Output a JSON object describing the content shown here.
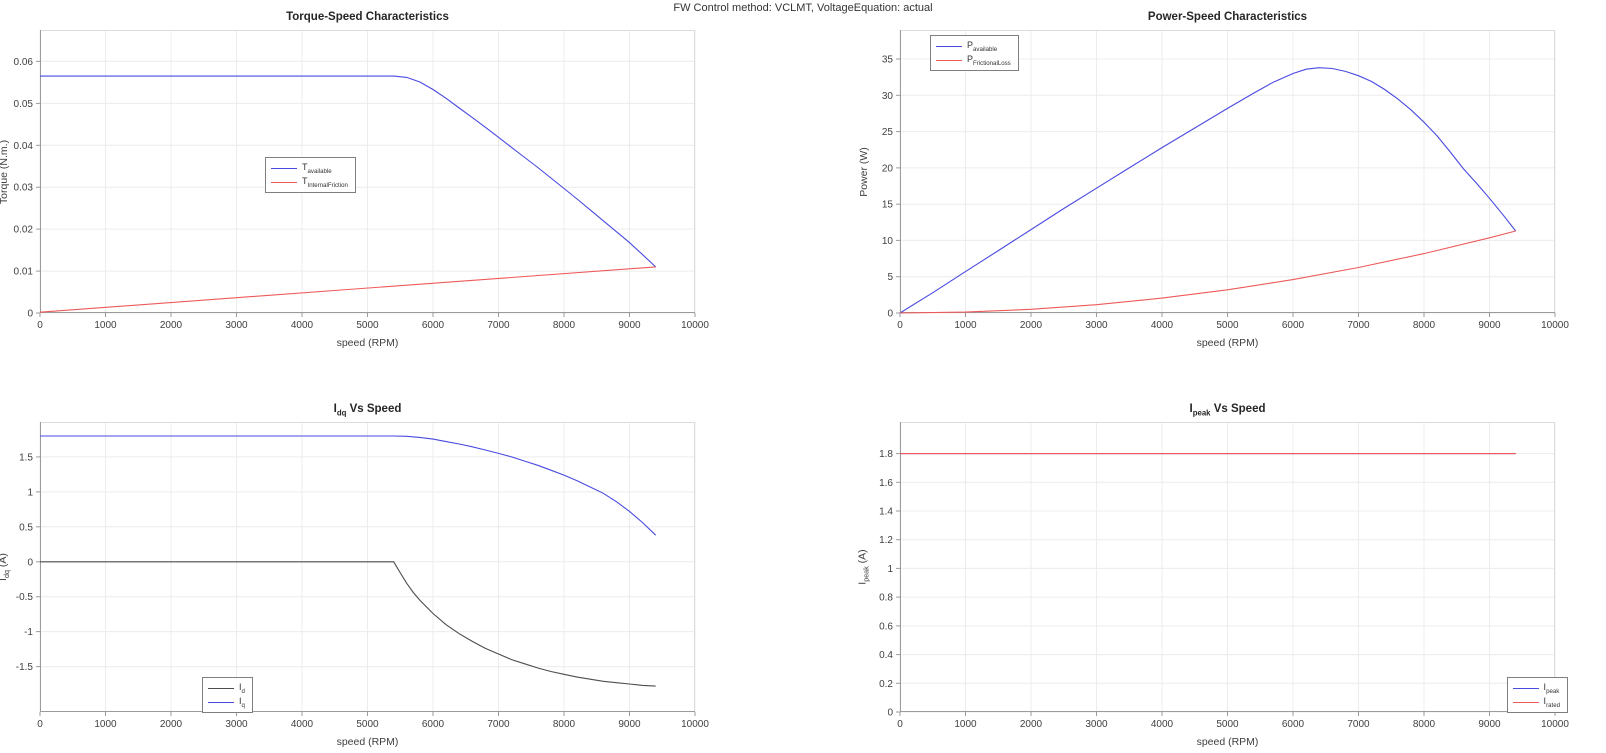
{
  "figure_title": "FW Control method: VCLMT, VoltageEquation: actual",
  "colors": {
    "line_blue": "#4a4ae0",
    "line_red": "#ee5a5a",
    "line_dark": "#4d4d4d",
    "grid": "#ececec",
    "axis": "#9b9b9b",
    "box_light": "#dcdcdc",
    "tick_text": "#404040",
    "title_text": "#262626",
    "legend_border": "#7f7f7f"
  },
  "chart_data": [
    {
      "id": "torque-speed",
      "type": "line",
      "title": "Torque-Speed Characteristics",
      "xlabel": "speed (RPM)",
      "ylabel": "Torque (N.m.)",
      "xlim": [
        0,
        10000
      ],
      "ylim": [
        0,
        0.0675
      ],
      "xticks": [
        0,
        1000,
        2000,
        3000,
        4000,
        5000,
        6000,
        7000,
        8000,
        9000,
        10000
      ],
      "yticks": [
        0,
        0.01,
        0.02,
        0.03,
        0.04,
        0.05,
        0.06
      ],
      "grid": true,
      "legend_position": "center-left",
      "series": [
        {
          "name": "T_{available}",
          "color": "#4a4ae0",
          "points": [
            [
              0,
              0.0565
            ],
            [
              5400,
              0.0565
            ],
            [
              5600,
              0.0562
            ],
            [
              5800,
              0.0551
            ],
            [
              6000,
              0.0533
            ],
            [
              6200,
              0.0512
            ],
            [
              6400,
              0.0489
            ],
            [
              6600,
              0.0466
            ],
            [
              6800,
              0.0443
            ],
            [
              7000,
              0.0419
            ],
            [
              7200,
              0.0395
            ],
            [
              7400,
              0.0371
            ],
            [
              7600,
              0.0347
            ],
            [
              7800,
              0.0322
            ],
            [
              8000,
              0.0297
            ],
            [
              8200,
              0.0272
            ],
            [
              8400,
              0.0246
            ],
            [
              8600,
              0.022
            ],
            [
              8800,
              0.0194
            ],
            [
              9000,
              0.0168
            ],
            [
              9200,
              0.0139
            ],
            [
              9400,
              0.011
            ]
          ]
        },
        {
          "name": "T_{InternalFriction}",
          "color": "#ee5a5a",
          "points": [
            [
              0,
              0.0002
            ],
            [
              4700,
              0.0056
            ],
            [
              9400,
              0.011
            ]
          ]
        }
      ]
    },
    {
      "id": "power-speed",
      "type": "line",
      "title": "Power-Speed Characteristics",
      "xlabel": "speed (RPM)",
      "ylabel": "Power (W)",
      "xlim": [
        0,
        10000
      ],
      "ylim": [
        0,
        39
      ],
      "xticks": [
        0,
        1000,
        2000,
        3000,
        4000,
        5000,
        6000,
        7000,
        8000,
        9000,
        10000
      ],
      "yticks": [
        0,
        5,
        10,
        15,
        20,
        25,
        30,
        35
      ],
      "grid": true,
      "legend_position": "top-left",
      "series": [
        {
          "name": "P_{available}",
          "color": "#4a4ae0",
          "points": [
            [
              0,
              0
            ],
            [
              500,
              2.8
            ],
            [
              1000,
              5.7
            ],
            [
              1500,
              8.6
            ],
            [
              2000,
              11.5
            ],
            [
              2500,
              14.4
            ],
            [
              3000,
              17.2
            ],
            [
              3500,
              20.0
            ],
            [
              4000,
              22.8
            ],
            [
              4500,
              25.5
            ],
            [
              5000,
              28.2
            ],
            [
              5400,
              30.3
            ],
            [
              5700,
              31.8
            ],
            [
              6000,
              33.0
            ],
            [
              6200,
              33.6
            ],
            [
              6400,
              33.8
            ],
            [
              6600,
              33.7
            ],
            [
              6800,
              33.3
            ],
            [
              7000,
              32.7
            ],
            [
              7200,
              31.9
            ],
            [
              7400,
              30.8
            ],
            [
              7600,
              29.5
            ],
            [
              7800,
              28.0
            ],
            [
              8000,
              26.3
            ],
            [
              8200,
              24.4
            ],
            [
              8400,
              22.2
            ],
            [
              8600,
              19.9
            ],
            [
              8800,
              17.9
            ],
            [
              9000,
              15.8
            ],
            [
              9200,
              13.6
            ],
            [
              9400,
              11.3
            ]
          ]
        },
        {
          "name": "P_{FrictionalLoss}",
          "color": "#ee5a5a",
          "points": [
            [
              0,
              0
            ],
            [
              1000,
              0.13
            ],
            [
              2000,
              0.51
            ],
            [
              3000,
              1.15
            ],
            [
              4000,
              2.05
            ],
            [
              5000,
              3.2
            ],
            [
              6000,
              4.6
            ],
            [
              7000,
              6.27
            ],
            [
              8000,
              8.18
            ],
            [
              9000,
              10.36
            ],
            [
              9400,
              11.3
            ]
          ]
        }
      ]
    },
    {
      "id": "idq-speed",
      "type": "line",
      "title": "I_{dq}  Vs  Speed",
      "xlabel": "speed (RPM)",
      "ylabel": "I_{dq}  (A)",
      "xlim": [
        0,
        10000
      ],
      "ylim": [
        -2.15,
        2.0
      ],
      "xticks": [
        0,
        1000,
        2000,
        3000,
        4000,
        5000,
        6000,
        7000,
        8000,
        9000,
        10000
      ],
      "yticks": [
        -1.5,
        -1,
        -0.5,
        0,
        0.5,
        1,
        1.5
      ],
      "grid": true,
      "legend_position": "bottom-center-left",
      "series": [
        {
          "name": "I_{d}",
          "color": "#4d4d4d",
          "points": [
            [
              0,
              0
            ],
            [
              5400,
              0
            ],
            [
              5500,
              -0.16
            ],
            [
              5600,
              -0.31
            ],
            [
              5700,
              -0.44
            ],
            [
              5800,
              -0.55
            ],
            [
              6000,
              -0.74
            ],
            [
              6200,
              -0.9
            ],
            [
              6400,
              -1.03
            ],
            [
              6600,
              -1.14
            ],
            [
              6800,
              -1.24
            ],
            [
              7000,
              -1.32
            ],
            [
              7200,
              -1.4
            ],
            [
              7400,
              -1.46
            ],
            [
              7600,
              -1.52
            ],
            [
              7800,
              -1.57
            ],
            [
              8000,
              -1.61
            ],
            [
              8200,
              -1.65
            ],
            [
              8400,
              -1.68
            ],
            [
              8600,
              -1.71
            ],
            [
              8800,
              -1.73
            ],
            [
              9000,
              -1.75
            ],
            [
              9200,
              -1.77
            ],
            [
              9400,
              -1.78
            ]
          ]
        },
        {
          "name": "I_{q}",
          "color": "#4a4ae0",
          "points": [
            [
              0,
              1.8
            ],
            [
              5400,
              1.8
            ],
            [
              5600,
              1.795
            ],
            [
              5800,
              1.78
            ],
            [
              6000,
              1.755
            ],
            [
              6200,
              1.72
            ],
            [
              6400,
              1.685
            ],
            [
              6600,
              1.645
            ],
            [
              6800,
              1.6
            ],
            [
              7000,
              1.55
            ],
            [
              7200,
              1.5
            ],
            [
              7400,
              1.44
            ],
            [
              7600,
              1.38
            ],
            [
              7800,
              1.31
            ],
            [
              8000,
              1.24
            ],
            [
              8200,
              1.16
            ],
            [
              8400,
              1.07
            ],
            [
              8600,
              0.98
            ],
            [
              8800,
              0.86
            ],
            [
              9000,
              0.72
            ],
            [
              9200,
              0.56
            ],
            [
              9400,
              0.38
            ]
          ]
        }
      ]
    },
    {
      "id": "ipeak-speed",
      "type": "line",
      "title": "I_{peak}  Vs  Speed",
      "xlabel": "speed (RPM)",
      "ylabel": "I_{peak}  (A)",
      "xlim": [
        0,
        10000
      ],
      "ylim": [
        0,
        2.02
      ],
      "xticks": [
        0,
        1000,
        2000,
        3000,
        4000,
        5000,
        6000,
        7000,
        8000,
        9000,
        10000
      ],
      "yticks": [
        0,
        0.2,
        0.4,
        0.6,
        0.8,
        1,
        1.2,
        1.4,
        1.6,
        1.8
      ],
      "grid": true,
      "legend_position": "bottom-right",
      "series": [
        {
          "name": "I_{peak}",
          "color": "#4a4ae0",
          "points": [
            [
              0,
              1.8
            ],
            [
              9400,
              1.8
            ]
          ]
        },
        {
          "name": "I_{rated}",
          "color": "#ee5a5a",
          "points": [
            [
              0,
              1.8
            ],
            [
              9400,
              1.8
            ]
          ]
        }
      ]
    }
  ]
}
